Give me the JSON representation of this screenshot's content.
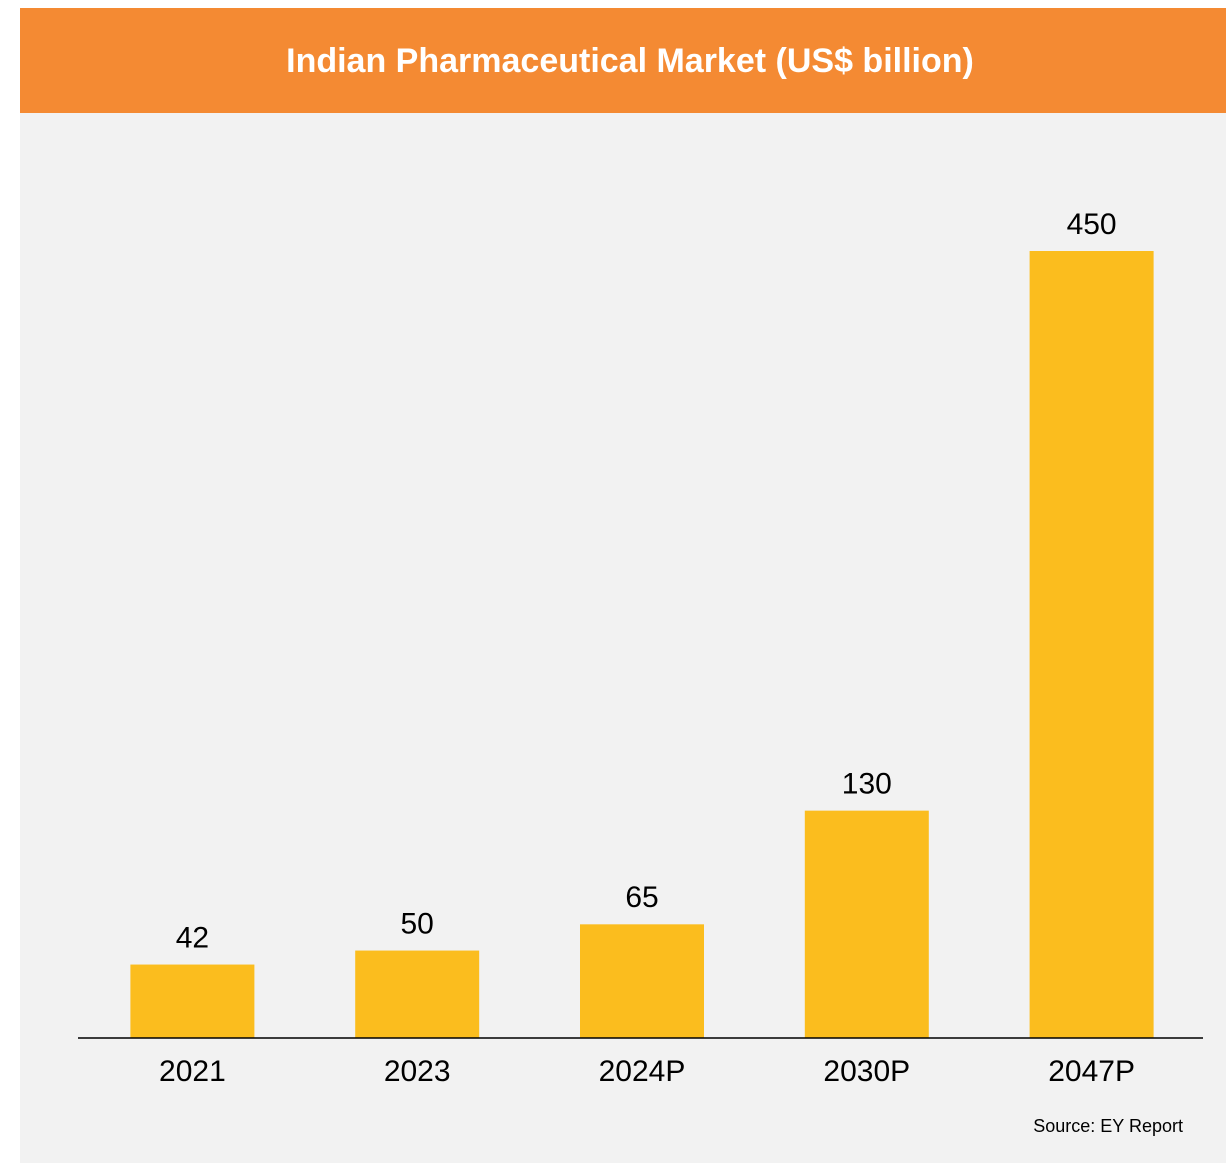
{
  "chart_data": {
    "type": "bar",
    "title": "Indian Pharmaceutical Market (US$ billion)",
    "categories": [
      "2021",
      "2023",
      "2024P",
      "2030P",
      "2047P"
    ],
    "values": [
      42,
      50,
      65,
      130,
      450
    ],
    "color": "#fbbd1e",
    "source": "Source: EY Report"
  }
}
